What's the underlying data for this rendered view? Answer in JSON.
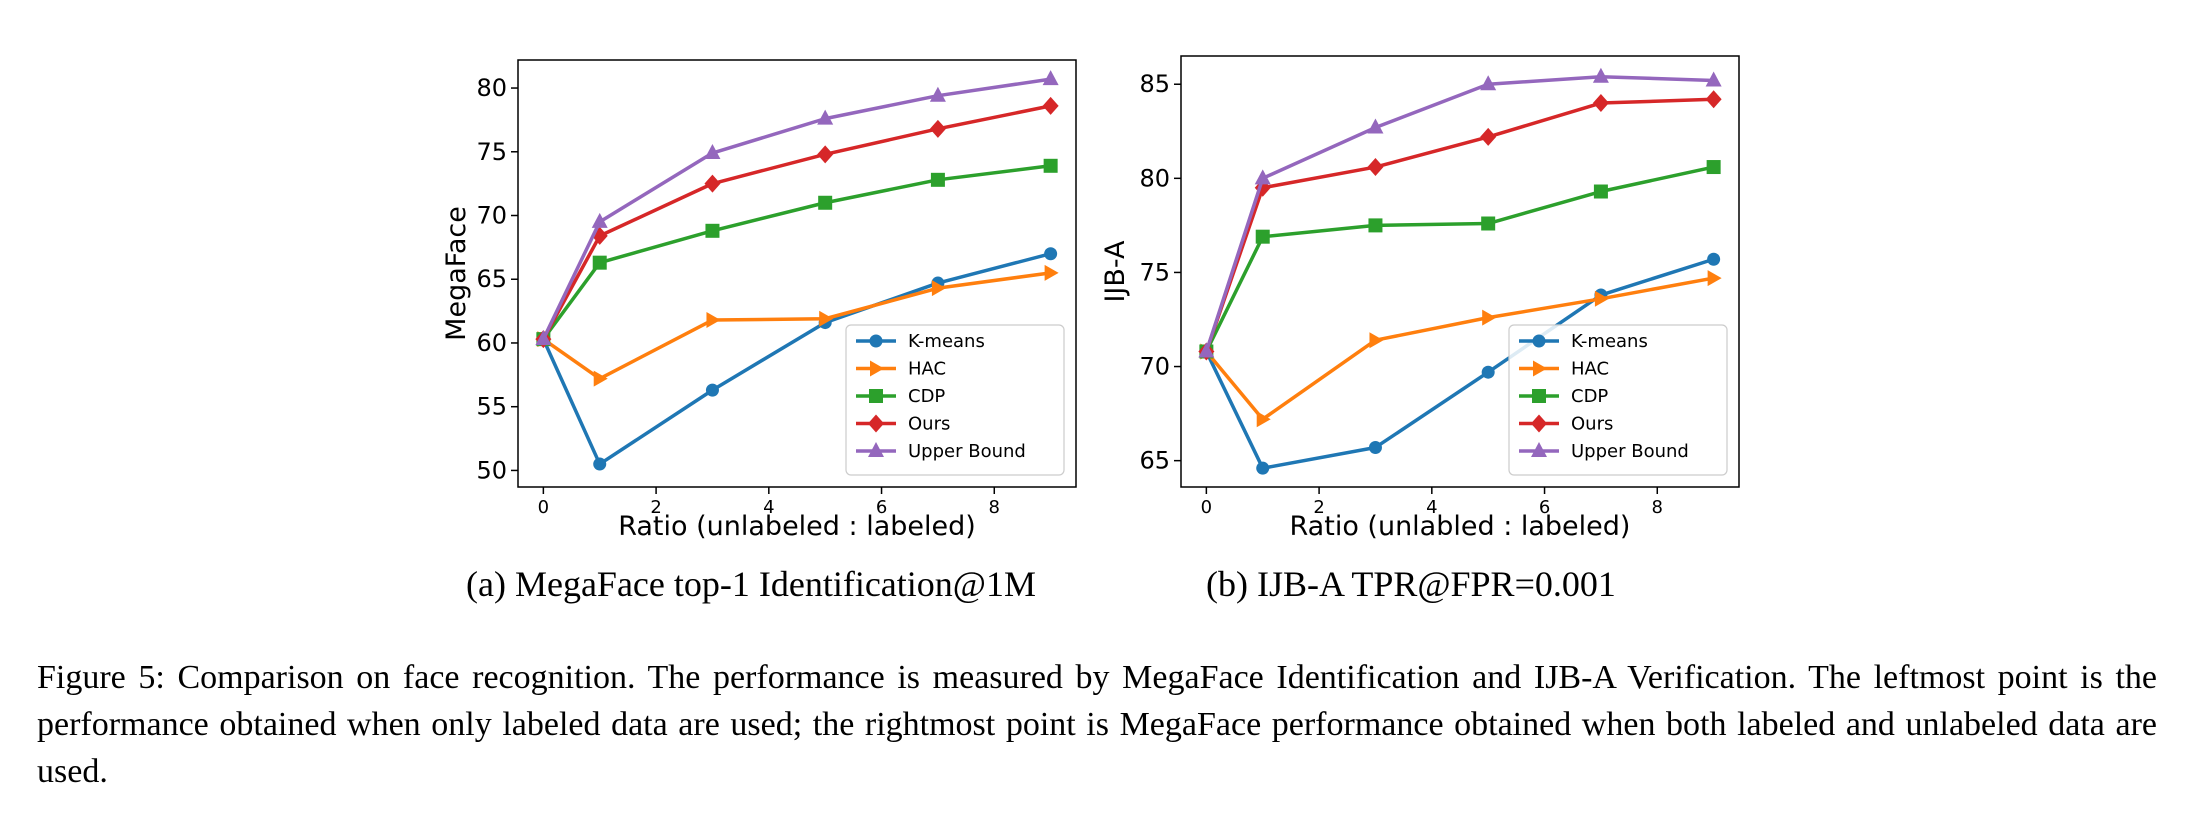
{
  "chart_data": [
    {
      "type": "line",
      "subcaption": "(a) MegaFace top-1 Identification@1M",
      "xlabel": "Ratio (unlabeled : labeled)",
      "ylabel": "MegaFace",
      "x": [
        0,
        1,
        3,
        5,
        7,
        9
      ],
      "xlim": [
        -0.45,
        9.45
      ],
      "ylim": [
        48.7,
        82.2
      ],
      "xticks": [
        0,
        2,
        4,
        6,
        8
      ],
      "yticks": [
        50,
        55,
        60,
        65,
        70,
        75,
        80
      ],
      "grid": false,
      "legend_position": "lower right",
      "series": [
        {
          "name": "K-means",
          "color": "#1f77b4",
          "marker": "circle",
          "values": [
            60.3,
            50.5,
            56.3,
            61.6,
            64.7,
            67.0
          ]
        },
        {
          "name": "HAC",
          "color": "#ff7f0e",
          "marker": "triangle-right",
          "values": [
            60.3,
            57.2,
            61.8,
            61.9,
            64.3,
            65.5
          ]
        },
        {
          "name": "CDP",
          "color": "#2ca02c",
          "marker": "square",
          "values": [
            60.3,
            66.3,
            68.8,
            71.0,
            72.8,
            73.9
          ]
        },
        {
          "name": "Ours",
          "color": "#d62728",
          "marker": "diamond",
          "values": [
            60.3,
            68.4,
            72.5,
            74.8,
            76.8,
            78.6
          ]
        },
        {
          "name": "Upper Bound",
          "color": "#9467bd",
          "marker": "triangle-up",
          "values": [
            60.3,
            69.5,
            74.9,
            77.6,
            79.4,
            80.7
          ]
        }
      ]
    },
    {
      "type": "line",
      "subcaption": "(b) IJB-A TPR@FPR=0.001",
      "xlabel": "Ratio (unlabled : labeled)",
      "ylabel": "IJB-A",
      "x": [
        0,
        1,
        3,
        5,
        7,
        9
      ],
      "xlim": [
        -0.45,
        9.45
      ],
      "ylim": [
        63.6,
        86.5
      ],
      "xticks": [
        0,
        2,
        4,
        6,
        8
      ],
      "yticks": [
        65,
        70,
        75,
        80,
        85
      ],
      "grid": false,
      "legend_position": "lower right",
      "series": [
        {
          "name": "K-means",
          "color": "#1f77b4",
          "marker": "circle",
          "values": [
            70.8,
            64.6,
            65.7,
            69.7,
            73.8,
            75.7
          ]
        },
        {
          "name": "HAC",
          "color": "#ff7f0e",
          "marker": "triangle-right",
          "values": [
            70.8,
            67.2,
            71.4,
            72.6,
            73.6,
            74.7
          ]
        },
        {
          "name": "CDP",
          "color": "#2ca02c",
          "marker": "square",
          "values": [
            70.8,
            76.9,
            77.5,
            77.6,
            79.3,
            80.6
          ]
        },
        {
          "name": "Ours",
          "color": "#d62728",
          "marker": "diamond",
          "values": [
            70.8,
            79.5,
            80.6,
            82.2,
            84.0,
            84.2
          ]
        },
        {
          "name": "Upper Bound",
          "color": "#9467bd",
          "marker": "triangle-up",
          "values": [
            70.8,
            80.0,
            82.7,
            85.0,
            85.4,
            85.2
          ]
        }
      ]
    }
  ],
  "caption": {
    "text": "Figure 5: Comparison on face recognition.  The performance is measured by MegaFace Identification and IJB-A Verification.  The leftmost point is the performance obtained when only labeled data are used; the rightmost point is MegaFace performance obtained when both labeled and unlabeled data are used."
  }
}
